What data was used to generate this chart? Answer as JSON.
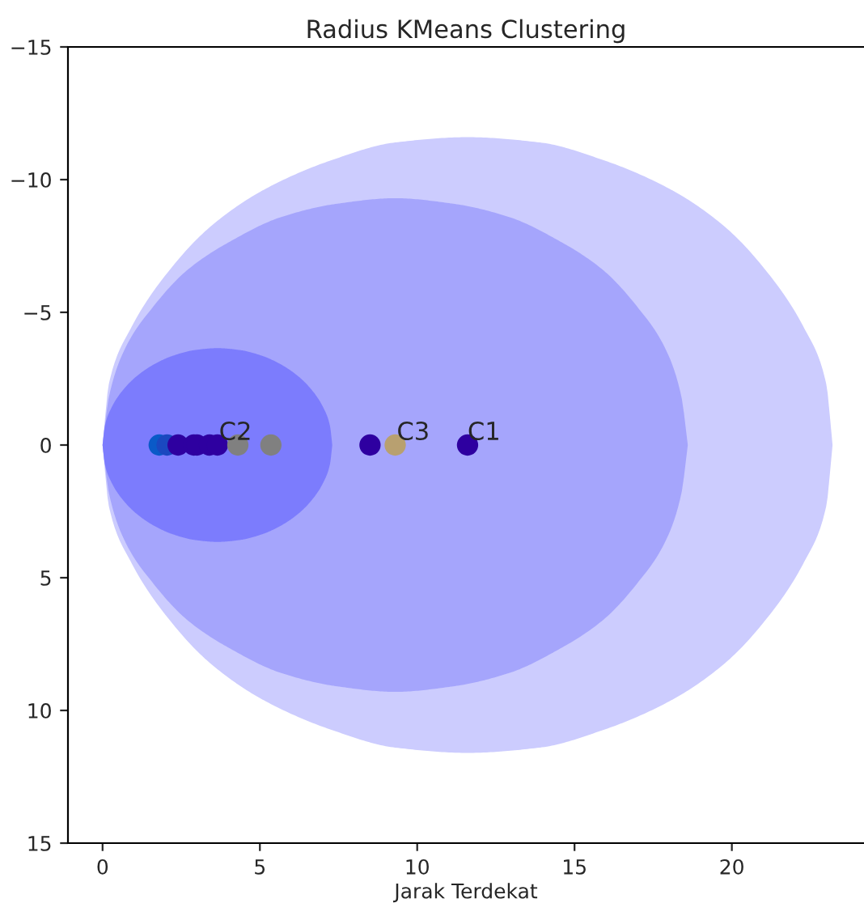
{
  "chart_data": {
    "type": "scatter",
    "title": "Radius KMeans Clustering",
    "xlabel": "Jarak Terdekat",
    "xlim": [
      -1.1,
      24.2
    ],
    "ylim": [
      15,
      -15
    ],
    "xticks": [
      0,
      5,
      10,
      15,
      20
    ],
    "yticks": [
      -15,
      -10,
      -5,
      0,
      5,
      10,
      15
    ],
    "grid": false,
    "marker": "circle",
    "series": [
      {
        "type": "area",
        "marker": "none",
        "color": "#ccccfe",
        "x": [
          0,
          0.2,
          0.9,
          2.0,
          3.4,
          5.1,
          7.2,
          9.3,
          11.6,
          13.9,
          16.0,
          18.1,
          19.8,
          21.2,
          22.3,
          23.0,
          23.2
        ],
        "values": [
          0,
          -2.3,
          -4.4,
          -6.4,
          -8.2,
          -9.6,
          -10.7,
          -11.4,
          -11.6,
          -11.4,
          -10.7,
          -9.6,
          -8.2,
          -6.4,
          -4.4,
          -2.3,
          0
        ]
      },
      {
        "type": "area",
        "marker": "none",
        "color": "#ccccfe",
        "x": [
          0,
          0.2,
          0.9,
          2.0,
          3.4,
          5.1,
          7.2,
          9.3,
          11.6,
          13.9,
          16.0,
          18.1,
          19.8,
          21.2,
          22.3,
          23.0,
          23.2
        ],
        "values": [
          0,
          2.3,
          4.4,
          6.4,
          8.2,
          9.6,
          10.7,
          11.4,
          11.6,
          11.4,
          10.7,
          9.6,
          8.2,
          6.4,
          4.4,
          2.3,
          0
        ]
      },
      {
        "type": "area",
        "marker": "none",
        "color": "#a5a5fc",
        "x": [
          0,
          0.2,
          0.7,
          1.6,
          2.7,
          4.1,
          5.7,
          7.5,
          9.3,
          11.1,
          12.9,
          14.5,
          15.9,
          17.0,
          17.9,
          18.4,
          18.6
        ],
        "values": [
          0,
          -1.8,
          -3.6,
          -5.2,
          -6.6,
          -7.7,
          -8.6,
          -9.1,
          -9.3,
          -9.1,
          -8.6,
          -7.7,
          -6.6,
          -5.2,
          -3.6,
          -1.8,
          0
        ]
      },
      {
        "type": "area",
        "marker": "none",
        "color": "#a5a5fc",
        "x": [
          0,
          0.2,
          0.7,
          1.6,
          2.7,
          4.1,
          5.7,
          7.5,
          9.3,
          11.1,
          12.9,
          14.5,
          15.9,
          17.0,
          17.9,
          18.4,
          18.6
        ],
        "values": [
          0,
          1.8,
          3.6,
          5.2,
          6.6,
          7.7,
          8.6,
          9.1,
          9.3,
          9.1,
          8.6,
          7.7,
          6.6,
          5.2,
          3.6,
          1.8,
          0
        ]
      },
      {
        "type": "area",
        "marker": "none",
        "color": "#7c7cfd",
        "x": [
          0,
          0.07,
          0.28,
          0.62,
          1.07,
          1.62,
          2.25,
          2.94,
          3.65,
          4.36,
          5.05,
          5.68,
          6.23,
          6.68,
          7.02,
          7.23,
          7.3
        ],
        "values": [
          0,
          -0.71,
          -1.4,
          -2.03,
          -2.58,
          -3.03,
          -3.37,
          -3.58,
          -3.65,
          -3.58,
          -3.37,
          -3.03,
          -2.58,
          -2.03,
          -1.4,
          -0.71,
          0
        ]
      },
      {
        "type": "area",
        "marker": "none",
        "color": "#7c7cfd",
        "x": [
          0,
          0.07,
          0.28,
          0.62,
          1.07,
          1.62,
          2.25,
          2.94,
          3.65,
          4.36,
          5.05,
          5.68,
          6.23,
          6.68,
          7.02,
          7.23,
          7.3
        ],
        "values": [
          0,
          0.71,
          1.4,
          2.03,
          2.58,
          3.03,
          3.37,
          3.58,
          3.65,
          3.58,
          3.37,
          3.03,
          2.58,
          2.03,
          1.4,
          0.71,
          0
        ]
      },
      {
        "x": [
          1.8,
          2.05,
          2.4,
          2.9,
          3.0,
          3.4,
          3.65,
          4.3,
          5.35,
          8.5,
          9.3,
          11.6
        ],
        "values": [
          0,
          0,
          0,
          0,
          0,
          0,
          0,
          0,
          0,
          0,
          0,
          0
        ],
        "colors": [
          "#0a5ac8",
          "#1a48c0",
          "#2e00a0",
          "#2e00a0",
          "#2e00a0",
          "#2e00a0",
          "#2e00a0",
          "#808080",
          "#808080",
          "#2e00a0",
          "#b8a070",
          "#2e00a0"
        ]
      }
    ],
    "annotations": [
      {
        "text": "C1",
        "x": 11.6,
        "y": 0
      },
      {
        "text": "C2",
        "x": 3.7,
        "y": 0
      },
      {
        "text": "C3",
        "x": 9.35,
        "y": 0
      }
    ]
  }
}
